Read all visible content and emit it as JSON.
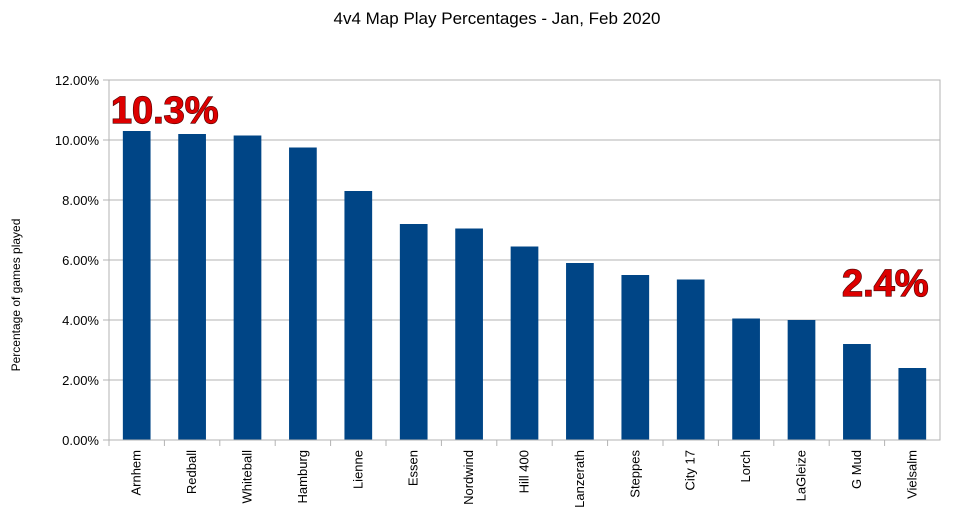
{
  "chart_data": {
    "type": "bar",
    "title": "4v4 Map Play Percentages - Jan, Feb 2020",
    "xlabel": "",
    "ylabel": "Percentage of games played",
    "categories": [
      "Arnhem",
      "Redball",
      "Whiteball",
      "Hamburg",
      "Lienne",
      "Essen",
      "Nordwind",
      "Hill 400",
      "Lanzerath",
      "Steppes",
      "City 17",
      "Lorch",
      "LaGleize",
      "G Mud",
      "Vielsalm"
    ],
    "values": [
      10.3,
      10.2,
      10.15,
      9.75,
      8.3,
      7.2,
      7.05,
      6.45,
      5.9,
      5.5,
      5.35,
      4.05,
      4.0,
      3.2,
      2.4
    ],
    "ylim": [
      0,
      12
    ],
    "yticks": [
      "0.00%",
      "2.00%",
      "4.00%",
      "6.00%",
      "8.00%",
      "10.00%",
      "12.00%"
    ],
    "grid": true,
    "legend": "none",
    "bar_color": "#004586",
    "grid_color": "#b3b3b3",
    "annotations": [
      {
        "text": "10.3%",
        "category": "Arnhem",
        "color": "#dd0000"
      },
      {
        "text": "2.4%",
        "category": "Vielsalm",
        "color": "#dd0000"
      }
    ]
  }
}
